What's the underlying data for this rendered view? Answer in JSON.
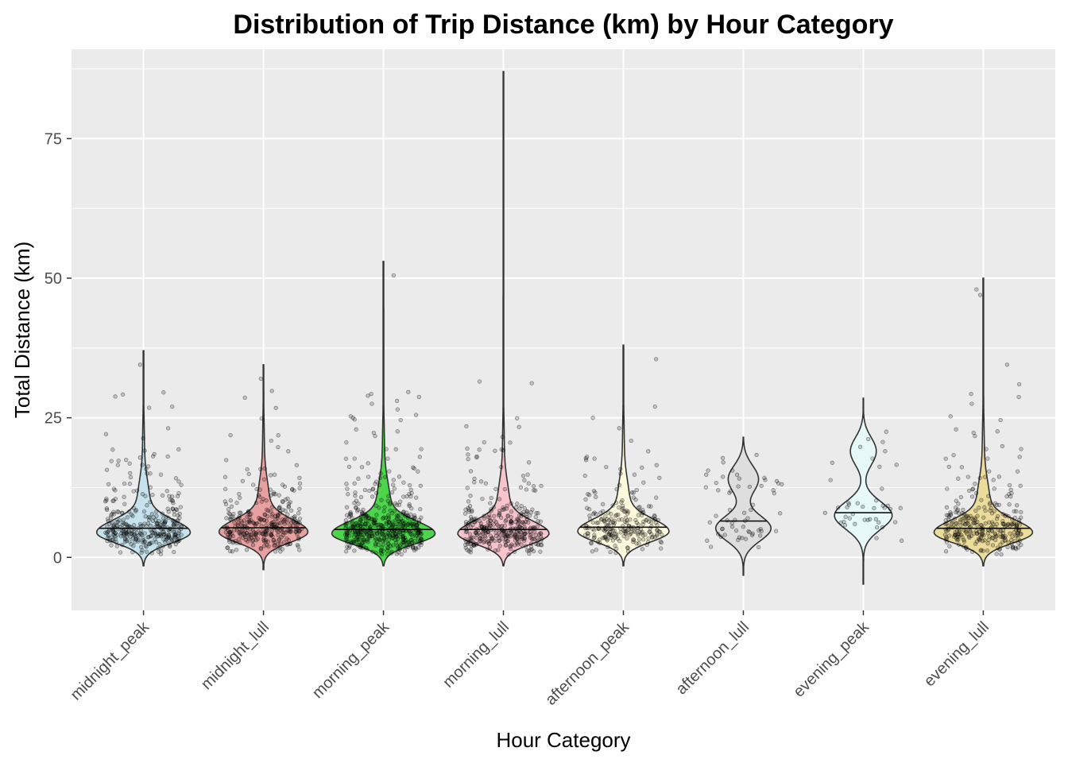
{
  "chart_data": {
    "type": "violin",
    "title": "Distribution of Trip Distance (km) by Hour Category",
    "xlabel": "Hour Category",
    "ylabel": "Total Distance (km)",
    "ylim": [
      -9.5,
      91
    ],
    "y_ticks": [
      0,
      25,
      50,
      75
    ],
    "grid": true,
    "categories": [
      "midnight_peak",
      "midnight_lull",
      "morning_peak",
      "morning_lull",
      "afternoon_peak",
      "afternoon_lull",
      "evening_peak",
      "evening_lull"
    ],
    "colors": [
      "#c6e2ec",
      "#e8a0a0",
      "#4cd64c",
      "#f7c4cc",
      "#fcf8dc",
      "#dedede",
      "#e6f8f8",
      "#ecdc9c"
    ],
    "median": [
      5.2,
      5.3,
      5.0,
      5.0,
      5.4,
      6.5,
      8.0,
      5.2
    ],
    "min": [
      -1.5,
      -2.2,
      -1.5,
      -1.5,
      -1.5,
      -3.2,
      -4.8,
      -1.5
    ],
    "max": [
      37,
      34.5,
      53,
      87,
      38,
      21.5,
      28.5,
      50
    ],
    "max_width": [
      0.39,
      0.37,
      0.43,
      0.38,
      0.38,
      0.23,
      0.24,
      0.41
    ],
    "point_count": [
      340,
      330,
      480,
      360,
      240,
      60,
      40,
      300
    ],
    "outliers": [
      [
        34.5,
        26.8,
        27
      ],
      [
        29.8,
        28.6,
        32
      ],
      [
        50.5,
        25.5,
        26.5
      ],
      [
        31.2,
        31.5
      ],
      [
        35.5,
        27
      ],
      [],
      [
        22.5,
        19
      ],
      [
        47,
        48,
        34.5,
        31
      ]
    ]
  }
}
